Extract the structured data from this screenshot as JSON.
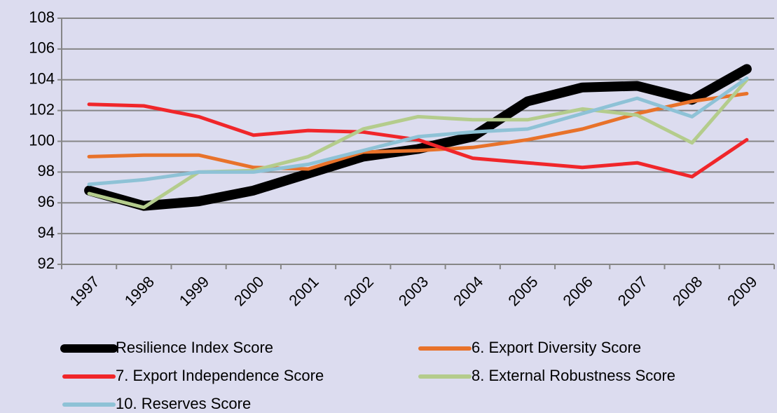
{
  "chart_data": {
    "type": "line",
    "categories": [
      "1997",
      "1998",
      "1999",
      "2000",
      "2001",
      "2002",
      "2003",
      "2004",
      "2005",
      "2006",
      "2007",
      "2008",
      "2009"
    ],
    "series": [
      {
        "name": "Resilience Index Score",
        "color": "#000000",
        "values": [
          96.8,
          95.8,
          96.1,
          96.8,
          97.9,
          99.0,
          99.5,
          100.3,
          102.6,
          103.5,
          103.6,
          102.7,
          104.7
        ]
      },
      {
        "name": "6. Export Diversity Score",
        "color": "#e8722a",
        "values": [
          99.0,
          99.1,
          99.1,
          98.3,
          98.2,
          99.3,
          99.4,
          99.6,
          100.1,
          100.8,
          101.8,
          102.6,
          103.1
        ]
      },
      {
        "name": "7. Export Independence Score",
        "color": "#f0262a",
        "values": [
          102.4,
          102.3,
          101.6,
          100.4,
          100.7,
          100.6,
          100.1,
          98.9,
          98.6,
          98.3,
          98.6,
          97.7,
          100.1
        ]
      },
      {
        "name": "8. External Robustness Score",
        "color": "#b4cc8c",
        "values": [
          96.6,
          95.7,
          98.0,
          98.1,
          99.0,
          100.8,
          101.6,
          101.4,
          101.4,
          102.1,
          101.7,
          99.9,
          104.0
        ]
      },
      {
        "name": "10. Reserves Score",
        "color": "#8ec2d6",
        "values": [
          97.2,
          97.5,
          98.0,
          98.0,
          98.5,
          99.4,
          100.3,
          100.6,
          100.8,
          101.8,
          102.8,
          101.6,
          104.1
        ]
      }
    ],
    "ylim": [
      92,
      108
    ],
    "yticks": [
      92,
      94,
      96,
      98,
      100,
      102,
      104,
      106,
      108
    ],
    "grid": true
  }
}
